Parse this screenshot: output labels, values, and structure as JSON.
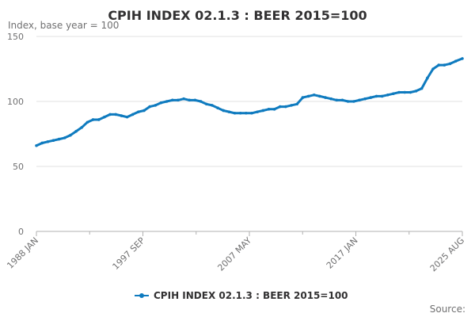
{
  "chart_data": {
    "type": "line",
    "title": "CPIH INDEX 02.1.3 : BEER 2015=100",
    "subtitle": "Index, base year = 100",
    "xlabel": "",
    "ylabel": "",
    "ylim": [
      0,
      150
    ],
    "y_ticks": [
      0,
      50,
      100,
      150
    ],
    "x_ticks": [
      "1988 JAN",
      "1997 SEP",
      "2007 MAY",
      "2017 JAN",
      "2025 AUG"
    ],
    "grid": true,
    "legend_position": "bottom",
    "source_label": "Source:",
    "line_color": "#0f7bbf",
    "series": [
      {
        "name": "CPIH INDEX 02.1.3 : BEER 2015=100",
        "x": [
          "1988-01",
          "1988-07",
          "1989-01",
          "1989-07",
          "1990-01",
          "1990-07",
          "1991-01",
          "1991-07",
          "1992-01",
          "1992-07",
          "1993-01",
          "1993-07",
          "1994-01",
          "1994-07",
          "1995-01",
          "1995-07",
          "1996-01",
          "1996-07",
          "1997-01",
          "1997-07",
          "1998-01",
          "1998-07",
          "1999-01",
          "1999-07",
          "2000-01",
          "2000-07",
          "2001-01",
          "2001-07",
          "2002-01",
          "2002-07",
          "2003-01",
          "2003-07",
          "2004-01",
          "2004-07",
          "2005-01",
          "2005-07",
          "2006-01",
          "2006-07",
          "2007-01",
          "2007-07",
          "2008-01",
          "2008-07",
          "2009-01",
          "2009-07",
          "2010-01",
          "2010-07",
          "2011-01",
          "2011-07",
          "2012-01",
          "2012-07",
          "2013-01",
          "2013-07",
          "2014-01",
          "2014-07",
          "2015-01",
          "2015-07",
          "2016-01",
          "2016-07",
          "2017-01",
          "2017-07",
          "2018-01",
          "2018-07",
          "2019-01",
          "2019-07",
          "2020-01",
          "2020-07",
          "2021-01",
          "2021-07",
          "2022-01",
          "2022-07",
          "2023-01",
          "2023-07",
          "2024-01",
          "2024-07",
          "2025-01",
          "2025-08"
        ],
        "values": [
          66,
          68,
          69,
          70,
          71,
          72,
          74,
          77,
          80,
          84,
          86,
          86,
          88,
          90,
          90,
          89,
          88,
          90,
          92,
          93,
          96,
          97,
          99,
          100,
          101,
          101,
          102,
          101,
          101,
          100,
          98,
          97,
          95,
          93,
          92,
          91,
          91,
          91,
          91,
          92,
          93,
          94,
          94,
          96,
          96,
          97,
          98,
          103,
          104,
          105,
          104,
          103,
          102,
          101,
          101,
          100,
          100,
          101,
          102,
          103,
          104,
          104,
          105,
          106,
          107,
          107,
          107,
          108,
          110,
          118,
          125,
          128,
          128,
          129,
          131,
          133
        ]
      }
    ]
  }
}
